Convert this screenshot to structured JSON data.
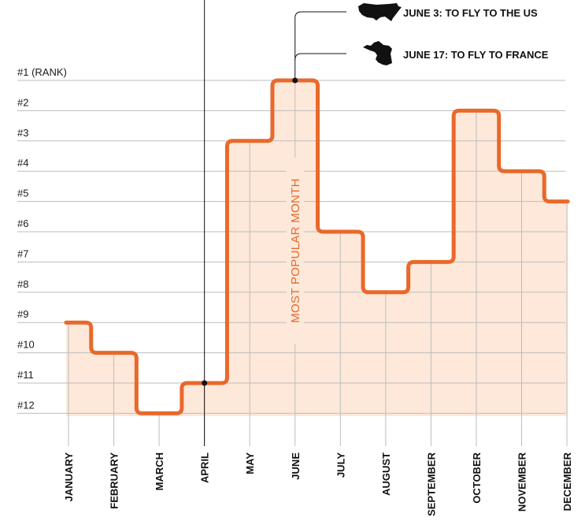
{
  "chart_data": {
    "type": "line",
    "step": true,
    "categories": [
      "JANUARY",
      "FEBRUARY",
      "MARCH",
      "APRIL",
      "MAY",
      "JUNE",
      "JULY",
      "AUGUST",
      "SEPTEMBER",
      "OCTOBER",
      "NOVEMBER",
      "DECEMBER"
    ],
    "series": [
      {
        "values": [
          9,
          10,
          12,
          11,
          3,
          1,
          6,
          8,
          7,
          2,
          4,
          5
        ]
      }
    ],
    "y_ticks": [
      "#1 (RANK)",
      "#2",
      "#3",
      "#4",
      "#5",
      "#6",
      "#7",
      "#8",
      "#9",
      "#10",
      "#11",
      "#12"
    ],
    "ylim": [
      1,
      12
    ],
    "y_inverted": true,
    "grid": true,
    "inset_label": "MOST POPULAR MONTH",
    "annotations": [
      {
        "text": "JUNE 3: TO FLY TO THE US",
        "icon": "usa-map-icon",
        "month": "JUNE"
      },
      {
        "text": "JUNE 17: TO FLY TO FRANCE",
        "icon": "france-map-icon",
        "month": "JUNE"
      }
    ],
    "marker_month": "APRIL",
    "colors": {
      "line": "#e8692a",
      "fill": "#fde8d9",
      "grid": "#bdbdbd",
      "text": "#111111"
    }
  }
}
